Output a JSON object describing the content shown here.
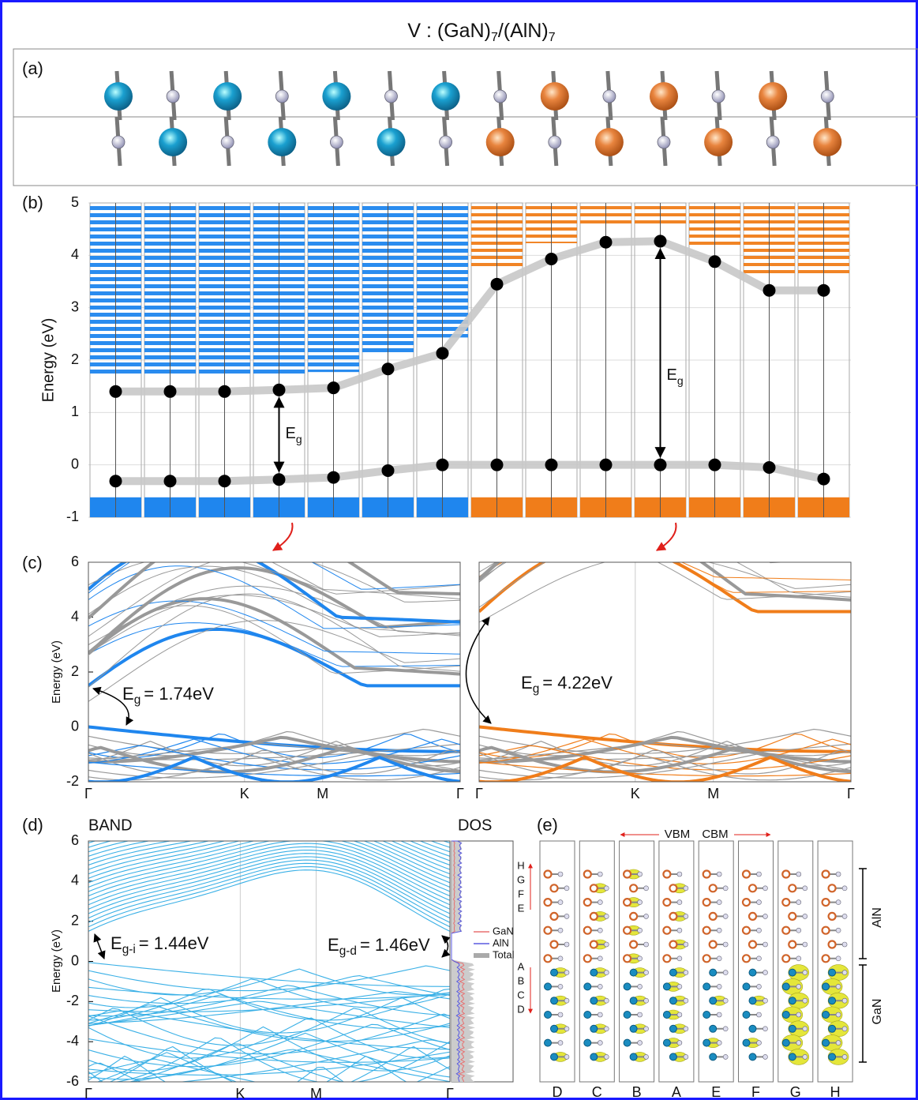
{
  "title": {
    "prefix": "V : (GaN)",
    "sub1": "7",
    "mid": "/(AlN)",
    "sub2": "7"
  },
  "panel_a": {
    "label": "(a)"
  },
  "panel_b": {
    "label": "(b)",
    "ylabel": "Energy (eV)",
    "ylim": [
      -1,
      5
    ],
    "yticks": [
      -1,
      0,
      1,
      2,
      3,
      4,
      5
    ],
    "cbm": [
      1.4,
      1.4,
      1.4,
      1.43,
      1.47,
      1.83,
      2.13,
      3.45,
      3.93,
      4.25,
      4.27,
      3.88,
      3.33,
      3.33
    ],
    "vbm": [
      -0.31,
      -0.31,
      -0.31,
      -0.28,
      -0.24,
      -0.11,
      0,
      0,
      0,
      0,
      0,
      0,
      -0.05,
      -0.27
    ],
    "gap_symbol": "E",
    "gap_sub": "g"
  },
  "panel_c": {
    "label": "(c)",
    "ylabel": "Energy (eV)",
    "ylim": [
      -2,
      6
    ],
    "yticks": [
      -2,
      0,
      2,
      4,
      6
    ],
    "kpoints": [
      "Γ",
      "K",
      "M",
      "Γ"
    ],
    "left_gap": {
      "symbol": "E",
      "sub": "g",
      "text": "= 1.74eV"
    },
    "right_gap": {
      "symbol": "E",
      "sub": "g",
      "text": "= 4.22eV"
    }
  },
  "panel_d": {
    "label": "(d)",
    "band_title": "BAND",
    "dos_title": "DOS",
    "ylabel": "Energy (eV)",
    "ylim": [
      -6,
      6
    ],
    "yticks": [
      -6,
      -4,
      -2,
      0,
      2,
      4,
      6
    ],
    "kpoints": [
      "Γ",
      "K",
      "M",
      "Γ"
    ],
    "indirect_gap": {
      "symbol": "E",
      "sub": "g-i",
      "text": "= 1.44eV"
    },
    "direct_gap": {
      "symbol": "E",
      "sub": "g-d",
      "text": "= 1.46eV"
    },
    "legend": [
      "GaN",
      "AlN",
      "Total"
    ],
    "upper_states": [
      "H",
      "G",
      "F",
      "E"
    ],
    "lower_states": [
      "A",
      "B",
      "C",
      "D"
    ]
  },
  "panel_e": {
    "label": "(e)",
    "vbm": "VBM",
    "cbm": "CBM",
    "columns": [
      "D",
      "C",
      "B",
      "A",
      "E",
      "F",
      "G",
      "H"
    ],
    "top_layer": "AlN",
    "bottom_layer": "GaN"
  }
}
